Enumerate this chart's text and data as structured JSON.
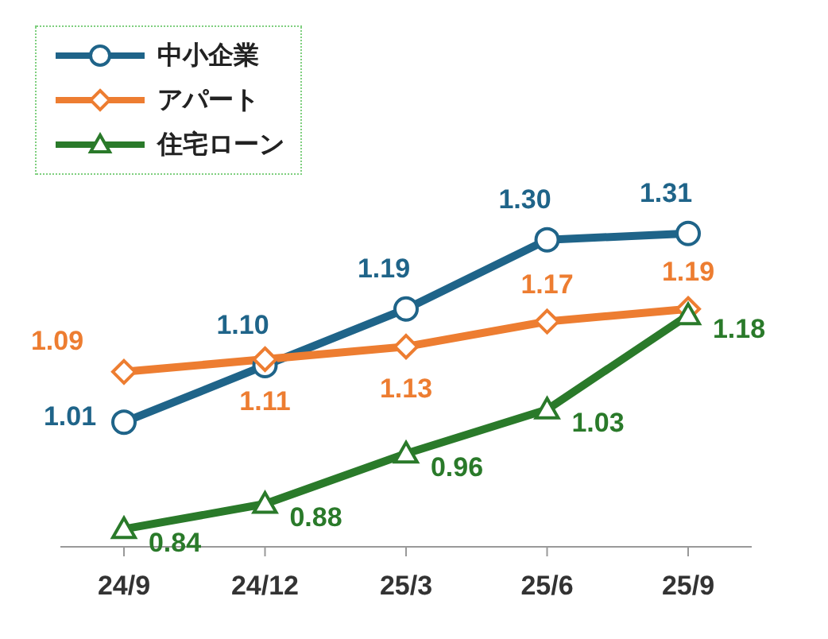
{
  "chart_data": {
    "type": "line",
    "categories": [
      "24/9",
      "24/12",
      "25/3",
      "25/6",
      "25/9"
    ],
    "legend": "top left",
    "series": [
      {
        "name": "中小企業",
        "color": "#1f6489",
        "marker": "circle",
        "values": [
          1.01,
          1.1,
          1.19,
          1.3,
          1.31
        ],
        "value_labels": [
          "1.01",
          "1.10",
          "1.19",
          "1.30",
          "1.31"
        ]
      },
      {
        "name": "アパート",
        "color": "#ed7d31",
        "marker": "diamond",
        "values": [
          1.09,
          1.11,
          1.13,
          1.17,
          1.19
        ],
        "value_labels": [
          "1.09",
          "1.11",
          "1.13",
          "1.17",
          "1.19"
        ]
      },
      {
        "name": "住宅ローン",
        "color": "#2a7a2a",
        "marker": "triangle",
        "values": [
          0.84,
          0.88,
          0.96,
          1.03,
          1.18
        ],
        "value_labels": [
          "0.84",
          "0.88",
          "0.96",
          "1.03",
          "1.18"
        ]
      }
    ]
  }
}
